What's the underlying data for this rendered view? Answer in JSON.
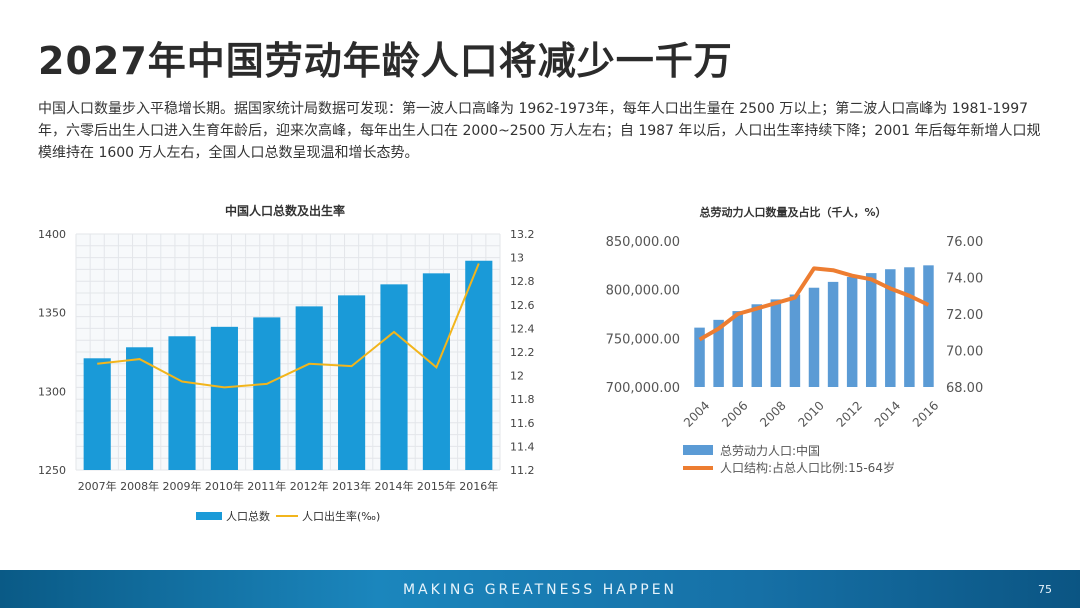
{
  "slide": {
    "title": "2027年中国劳动年龄人口将减少一千万",
    "description": "中国人口数量步入平稳增长期。据国家统计局数据可发现：第一波人口高峰为 1962-1973年，每年人口出生量在 2500 万以上；第二波人口高峰为 1981-1997 年，六零后出生人口进入生育年龄后，迎来次高峰，每年出生人口在 2000~2500 万人左右；自 1987 年以后，人口出生率持续下降；2001 年后每年新增人口规模维持在 1600 万人左右，全国人口总数呈现温和增长态势。",
    "footer_tagline": "MAKING GREATNESS HAPPEN",
    "page_number": "75"
  },
  "colors": {
    "bar_blue": "#1a9ad8",
    "rate_line": "#f2b51c",
    "bar_blue2": "#5b9bd5",
    "ratio_line": "#ed7d31"
  },
  "chart_data": [
    {
      "type": "bar",
      "title": "中国人口总数及出生率",
      "categories": [
        "2007年",
        "2008年",
        "2009年",
        "2010年",
        "2011年",
        "2012年",
        "2013年",
        "2014年",
        "2015年",
        "2016年"
      ],
      "series": [
        {
          "name": "人口总数",
          "type": "bar",
          "axis": "left",
          "values": [
            1321,
            1328,
            1335,
            1341,
            1347,
            1354,
            1361,
            1368,
            1375,
            1383
          ]
        },
        {
          "name": "人口出生率(‰)",
          "type": "line",
          "axis": "right",
          "values": [
            12.1,
            12.14,
            11.95,
            11.9,
            11.93,
            12.1,
            12.08,
            12.37,
            12.07,
            12.95
          ]
        }
      ],
      "left_ticks": [
        "1400",
        "1350",
        "1300",
        "1250"
      ],
      "right_ticks": [
        "13.2",
        "13",
        "12.8",
        "12.6",
        "12.4",
        "12.2",
        "12",
        "11.8",
        "11.6",
        "11.4",
        "11.2"
      ],
      "ylim_left": [
        1250,
        1400
      ],
      "ylim_right": [
        11.2,
        13.2
      ],
      "grid": true,
      "legend": "bottom"
    },
    {
      "type": "bar",
      "title": "总劳动力人口数量及占比（千人，%）",
      "x": [
        2004,
        2005,
        2006,
        2007,
        2008,
        2009,
        2010,
        2011,
        2012,
        2013,
        2014,
        2015,
        2016
      ],
      "x_tick_labels": [
        "2004",
        "2006",
        "2008",
        "2010",
        "2012",
        "2014",
        "2016"
      ],
      "series": [
        {
          "name": "总劳动力人口:中国",
          "type": "bar",
          "axis": "left",
          "values": [
            761000,
            769000,
            778000,
            785000,
            790000,
            795000,
            802000,
            808000,
            813000,
            817000,
            821000,
            823000,
            825000
          ]
        },
        {
          "name": "人口结构:占总人口比例:15-64岁",
          "type": "line",
          "axis": "right",
          "values": [
            70.6,
            71.2,
            72.0,
            72.3,
            72.6,
            72.9,
            74.5,
            74.4,
            74.1,
            73.9,
            73.4,
            73.0,
            72.5
          ]
        }
      ],
      "left_ticks": [
        "850,000.00",
        "800,000.00",
        "750,000.00",
        "700,000.00"
      ],
      "right_ticks": [
        "76.00",
        "74.00",
        "72.00",
        "70.00",
        "68.00"
      ],
      "ylim_left": [
        700000,
        850000
      ],
      "ylim_right": [
        68,
        76
      ],
      "grid": false,
      "legend": "bottom"
    }
  ]
}
